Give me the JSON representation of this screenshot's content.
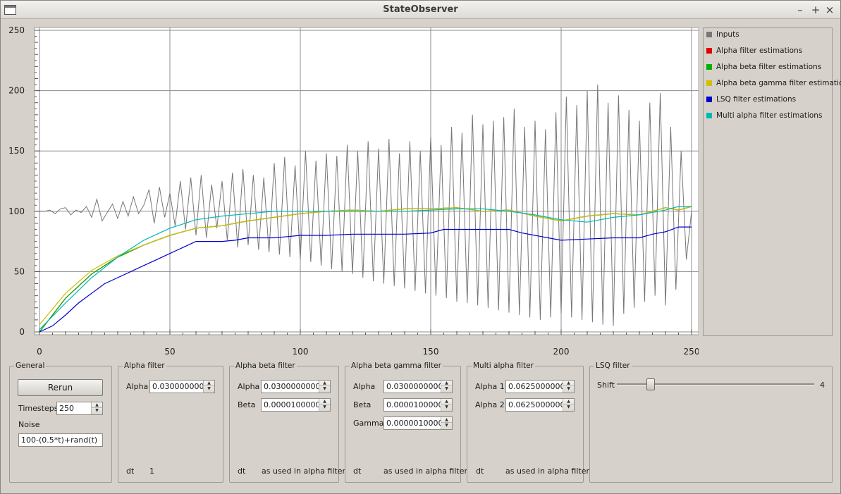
{
  "window": {
    "title": "StateObserver",
    "controls": [
      "–",
      "+",
      "×"
    ]
  },
  "chart_data": {
    "type": "line",
    "xlim": [
      0,
      250
    ],
    "ylim": [
      0,
      250
    ],
    "x_ticks": [
      "0",
      "50",
      "100",
      "150",
      "200",
      "250"
    ],
    "y_ticks": [
      "0",
      "50",
      "100",
      "150",
      "200",
      "250"
    ],
    "grid": true,
    "legend_position": "right",
    "series": [
      {
        "name": "Inputs",
        "color": "#777777",
        "x": [
          0,
          2,
          4,
          6,
          8,
          10,
          12,
          14,
          16,
          18,
          20,
          22,
          24,
          26,
          28,
          30,
          32,
          34,
          36,
          38,
          40,
          42,
          44,
          46,
          48,
          50,
          52,
          54,
          56,
          58,
          60,
          62,
          64,
          66,
          68,
          70,
          72,
          74,
          76,
          78,
          80,
          82,
          84,
          86,
          88,
          90,
          92,
          94,
          96,
          98,
          100,
          102,
          104,
          106,
          108,
          110,
          112,
          114,
          116,
          118,
          120,
          122,
          124,
          126,
          128,
          130,
          132,
          134,
          136,
          138,
          140,
          142,
          144,
          146,
          148,
          150,
          152,
          154,
          156,
          158,
          160,
          162,
          164,
          166,
          168,
          170,
          172,
          174,
          176,
          178,
          180,
          182,
          184,
          186,
          188,
          190,
          192,
          194,
          196,
          198,
          200,
          202,
          204,
          206,
          208,
          210,
          212,
          214,
          216,
          218,
          220,
          222,
          224,
          226,
          228,
          230,
          232,
          234,
          236,
          238,
          240,
          242,
          244,
          246,
          248,
          250
        ],
        "values": [
          100,
          100,
          101,
          98,
          102,
          103,
          97,
          101,
          99,
          104,
          95,
          110,
          92,
          99,
          106,
          94,
          108,
          96,
          112,
          98,
          105,
          118,
          90,
          120,
          95,
          115,
          88,
          125,
          85,
          128,
          80,
          130,
          78,
          122,
          86,
          125,
          76,
          132,
          70,
          135,
          72,
          130,
          68,
          128,
          66,
          140,
          64,
          145,
          62,
          138,
          60,
          150,
          58,
          142,
          55,
          148,
          52,
          146,
          50,
          155,
          48,
          150,
          45,
          158,
          42,
          152,
          40,
          160,
          38,
          148,
          36,
          158,
          34,
          150,
          32,
          162,
          30,
          155,
          28,
          170,
          25,
          165,
          24,
          180,
          22,
          172,
          20,
          175,
          18,
          178,
          16,
          185,
          14,
          170,
          12,
          175,
          10,
          168,
          12,
          182,
          15,
          195,
          12,
          188,
          10,
          200,
          8,
          205,
          6,
          190,
          5,
          196,
          15,
          184,
          20,
          175,
          25,
          190,
          30,
          198,
          22,
          170,
          35,
          150,
          60,
          100
        ]
      },
      {
        "name": "Alpha filter estimations",
        "color": "#e00000",
        "x": [
          0,
          10,
          20,
          30,
          40,
          50,
          60,
          70,
          80,
          90,
          100,
          110,
          120,
          130,
          140,
          150,
          160,
          170,
          180,
          190,
          200,
          210,
          220,
          230,
          240,
          245,
          250
        ],
        "values": [
          0,
          28,
          48,
          62,
          72,
          80,
          86,
          88,
          92,
          95,
          98,
          100,
          101,
          100,
          102,
          102,
          103,
          100,
          101,
          96,
          92,
          96,
          98,
          97,
          103,
          101,
          104
        ]
      },
      {
        "name": "Alpha beta filter estimations",
        "color": "#00b000",
        "x": [
          0,
          10,
          20,
          30,
          40,
          50,
          60,
          70,
          80,
          90,
          100,
          110,
          120,
          130,
          140,
          150,
          160,
          170,
          180,
          190,
          200,
          210,
          220,
          230,
          240,
          245,
          250
        ],
        "values": [
          0,
          28,
          48,
          62,
          72,
          80,
          86,
          88,
          92,
          95,
          98,
          100,
          101,
          100,
          102,
          102,
          103,
          100,
          101,
          96,
          92,
          96,
          98,
          97,
          103,
          101,
          104
        ]
      },
      {
        "name": "Alpha beta gamma filter estimations",
        "color": "#d0c000",
        "x": [
          0,
          10,
          20,
          30,
          40,
          50,
          60,
          70,
          80,
          90,
          100,
          110,
          120,
          130,
          140,
          150,
          160,
          170,
          180,
          190,
          200,
          210,
          220,
          230,
          240,
          245,
          250
        ],
        "values": [
          6,
          32,
          51,
          63,
          72,
          80,
          86,
          88,
          92,
          95,
          98,
          100,
          101,
          100,
          102,
          102,
          103,
          100,
          101,
          96,
          92,
          96,
          98,
          97,
          103,
          101,
          104
        ]
      },
      {
        "name": "LSQ filter estimations",
        "color": "#0000cc",
        "x": [
          0,
          5,
          10,
          15,
          20,
          25,
          30,
          35,
          40,
          45,
          50,
          55,
          60,
          62,
          65,
          70,
          75,
          80,
          85,
          90,
          95,
          100,
          110,
          120,
          130,
          140,
          150,
          155,
          160,
          170,
          180,
          185,
          190,
          195,
          200,
          210,
          220,
          230,
          235,
          240,
          245,
          250
        ],
        "values": [
          0,
          5,
          14,
          24,
          32,
          40,
          45,
          50,
          55,
          60,
          65,
          70,
          75,
          75,
          75,
          75,
          76,
          78,
          78,
          78,
          79,
          80,
          80,
          81,
          81,
          81,
          82,
          85,
          85,
          85,
          85,
          82,
          80,
          78,
          76,
          77,
          78,
          78,
          81,
          83,
          87,
          87
        ]
      },
      {
        "name": "Multi alpha filter estimations",
        "color": "#00b8b8",
        "x": [
          0,
          10,
          20,
          30,
          40,
          50,
          60,
          70,
          80,
          90,
          100,
          110,
          120,
          130,
          140,
          150,
          160,
          170,
          180,
          190,
          200,
          210,
          220,
          230,
          240,
          245,
          250
        ],
        "values": [
          2,
          24,
          45,
          62,
          76,
          86,
          93,
          96,
          98,
          100,
          100,
          100,
          100,
          100,
          100,
          101,
          102,
          102,
          100,
          97,
          93,
          91,
          95,
          97,
          101,
          104,
          104
        ]
      }
    ]
  },
  "legend": [
    {
      "label": "Inputs",
      "color": "#777777"
    },
    {
      "label": "Alpha filter estimations",
      "color": "#e00000"
    },
    {
      "label": "Alpha beta filter estimations",
      "color": "#00b000"
    },
    {
      "label": "Alpha beta gamma filter estimations",
      "color": "#d0c000"
    },
    {
      "label": "LSQ filter estimations",
      "color": "#0000cc"
    },
    {
      "label": "Multi alpha filter estimations",
      "color": "#00b8b8"
    }
  ],
  "general": {
    "title": "General",
    "rerun_label": "Rerun",
    "timesteps_label": "Timesteps",
    "timesteps_value": "250",
    "noise_label": "Noise",
    "noise_value": "100-(0.5*t)+rand(t)"
  },
  "alpha_filter": {
    "title": "Alpha filter",
    "alpha_label": "Alpha",
    "alpha_value": "0.0300000000",
    "dt_label": "dt",
    "dt_value": "1"
  },
  "alpha_beta_filter": {
    "title": "Alpha beta filter",
    "alpha_label": "Alpha",
    "alpha_value": "0.0300000000",
    "beta_label": "Beta",
    "beta_value": "0.0000100000",
    "dt_label": "dt",
    "dt_value": "as used in alpha filter"
  },
  "alpha_beta_gamma_filter": {
    "title": "Alpha beta gamma filter",
    "alpha_label": "Alpha",
    "alpha_value": "0.0300000000",
    "beta_label": "Beta",
    "beta_value": "0.0000100000",
    "gamma_label": "Gamma",
    "gamma_value": "0.0000010000",
    "dt_label": "dt",
    "dt_value": "as used in alpha filter"
  },
  "multi_alpha_filter": {
    "title": "Multi alpha filter",
    "alpha1_label": "Alpha 1",
    "alpha1_value": "0.0625000000",
    "alpha2_label": "Alpha 2",
    "alpha2_value": "0.0625000000",
    "dt_label": "dt",
    "dt_value": "as used in alpha filter"
  },
  "lsq_filter": {
    "title": "LSQ filter",
    "shift_label": "Shift",
    "shift_value": "4",
    "shift_fraction": 0.17
  }
}
